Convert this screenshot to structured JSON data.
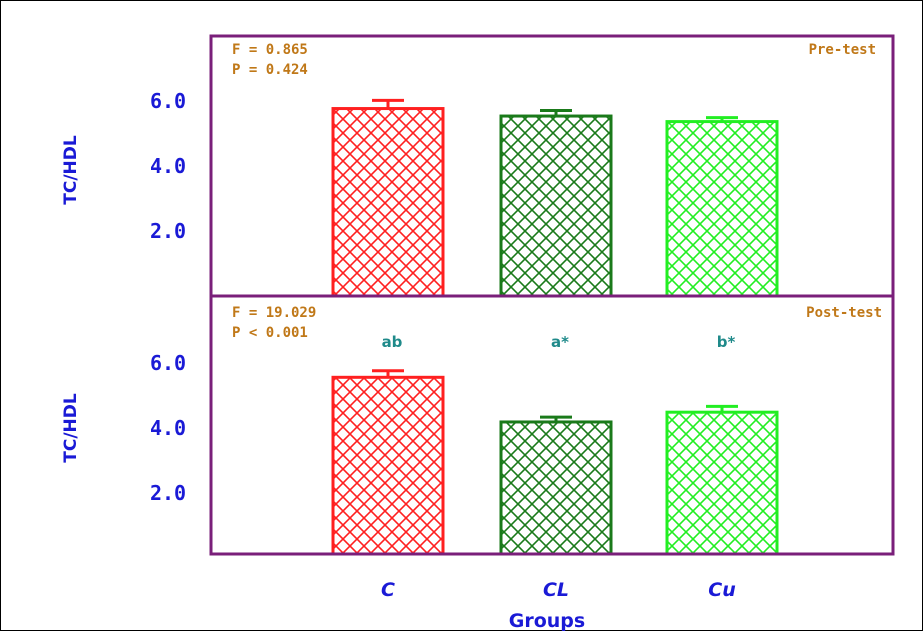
{
  "chart_data": [
    {
      "type": "bar",
      "panel": "Pre-test",
      "label": "Pre-test",
      "stats": [
        "F = 0.865",
        "P = 0.424"
      ],
      "ylabel": "TC/HDL",
      "categories": [
        "C",
        "CL",
        "Cu"
      ],
      "values": [
        5.75,
        5.52,
        5.35
      ],
      "errors": [
        0.25,
        0.17,
        0.12
      ],
      "yticks": [
        "2.0",
        "4.0",
        "6.0"
      ],
      "ylim": [
        0,
        8.0
      ],
      "bar_colors": [
        "#ff2020",
        "#1a7a1a",
        "#22ee22"
      ],
      "significance": []
    },
    {
      "type": "bar",
      "panel": "Post-test",
      "label": "Post-test",
      "stats": [
        "F = 19.029",
        "P < 0.001"
      ],
      "ylabel": "TC/HDL",
      "categories": [
        "C",
        "CL",
        "Cu"
      ],
      "values": [
        5.42,
        4.05,
        4.35
      ],
      "errors": [
        0.2,
        0.15,
        0.18
      ],
      "yticks": [
        "2.0",
        "4.0",
        "6.0"
      ],
      "ylim": [
        0,
        8.0
      ],
      "bar_colors": [
        "#ff2020",
        "#1a7a1a",
        "#22ee22"
      ],
      "significance": [
        "ab",
        "a*",
        "b*"
      ]
    }
  ],
  "xaxis": {
    "title": "Groups",
    "categories": [
      "C",
      "CL",
      "Cu"
    ]
  },
  "colors": {
    "axis_frame": "#7a1f7a",
    "tick_text": "#1a1ad6",
    "stat_text": "#c07818",
    "sig_text": "#1f8a8a"
  }
}
